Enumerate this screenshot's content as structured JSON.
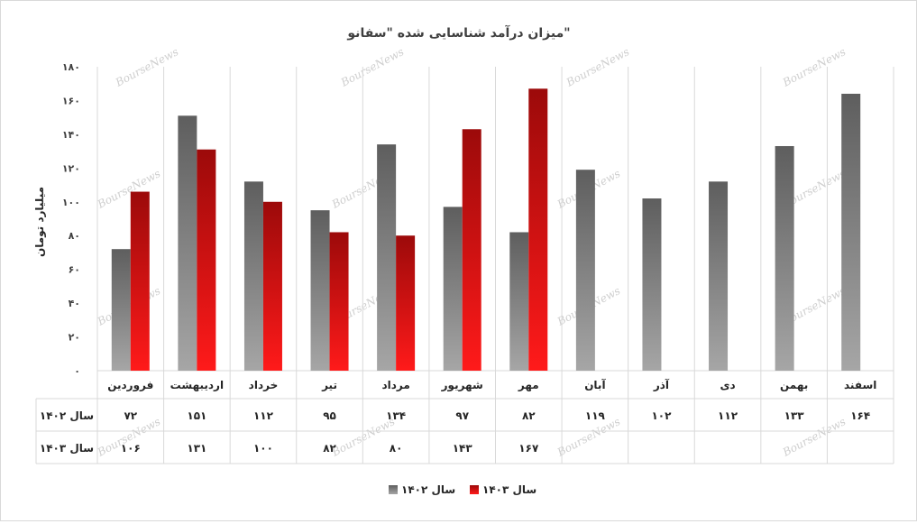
{
  "watermark": "BourseNews",
  "chart_data": {
    "type": "bar",
    "title": "میزان درآمد شناسایی شده \"سفانو\"",
    "ylabel": "میلیارد تومان",
    "xlabel": "",
    "ylim": [
      0,
      180
    ],
    "yticks": [
      "۰",
      "۲۰",
      "۴۰",
      "۶۰",
      "۸۰",
      "۱۰۰",
      "۱۲۰",
      "۱۴۰",
      "۱۶۰",
      "۱۸۰"
    ],
    "grid": "vertical category separators",
    "legend_position": "bottom",
    "categories": [
      "اسفند",
      "بهمن",
      "دی",
      "آذر",
      "آبان",
      "مهر",
      "شهریور",
      "مرداد",
      "تیر",
      "خرداد",
      "اردیبهشت",
      "فروردین"
    ],
    "series": [
      {
        "name": "سال ۱۴۰۲",
        "color": "#7f7f7f",
        "values": [
          164,
          133,
          112,
          102,
          119,
          82,
          97,
          134,
          95,
          112,
          151,
          72
        ],
        "labels": [
          "۱۶۴",
          "۱۳۳",
          "۱۱۲",
          "۱۰۲",
          "۱۱۹",
          "۸۲",
          "۹۷",
          "۱۳۴",
          "۹۵",
          "۱۱۲",
          "۱۵۱",
          "۷۲"
        ]
      },
      {
        "name": "سال ۱۴۰۳",
        "color": "#e00000",
        "values": [
          null,
          null,
          null,
          null,
          null,
          167,
          143,
          80,
          82,
          100,
          131,
          106
        ],
        "labels": [
          "",
          "",
          "",
          "",
          "",
          "۱۶۷",
          "۱۴۳",
          "۸۰",
          "۸۲",
          "۱۰۰",
          "۱۳۱",
          "۱۰۶"
        ]
      }
    ]
  }
}
